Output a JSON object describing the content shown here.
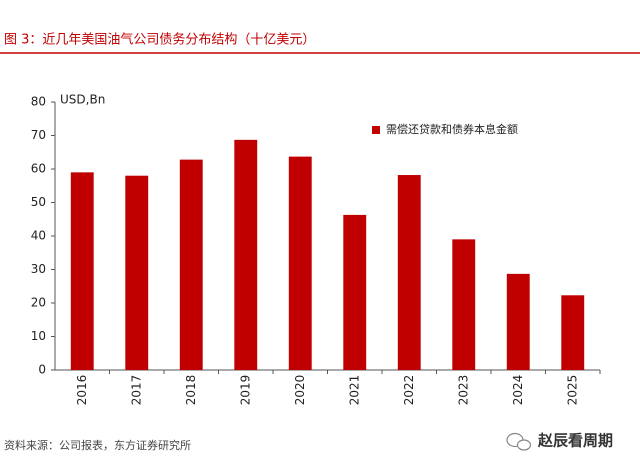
{
  "chart_data": {
    "type": "bar",
    "title": "图 3：近几年美国油气公司债务分布结构（十亿美元）",
    "y_axis_label": "USD,Bn",
    "categories": [
      "2016",
      "2017",
      "2018",
      "2019",
      "2020",
      "2021",
      "2022",
      "2023",
      "2024",
      "2025"
    ],
    "series": [
      {
        "name": "需偿还贷款和债券本息金额",
        "color": "#c00000",
        "values": [
          59,
          58,
          62.8,
          68.7,
          63.7,
          46.3,
          58.2,
          39,
          28.7,
          22.3
        ]
      }
    ],
    "ylim": [
      0,
      80
    ],
    "yticks": [
      0,
      10,
      20,
      30,
      40,
      50,
      60,
      70,
      80
    ],
    "grid": false,
    "legend": "upper right"
  },
  "source": "资料来源：公司报表，东方证券研究所",
  "watermark": "赵辰看周期"
}
